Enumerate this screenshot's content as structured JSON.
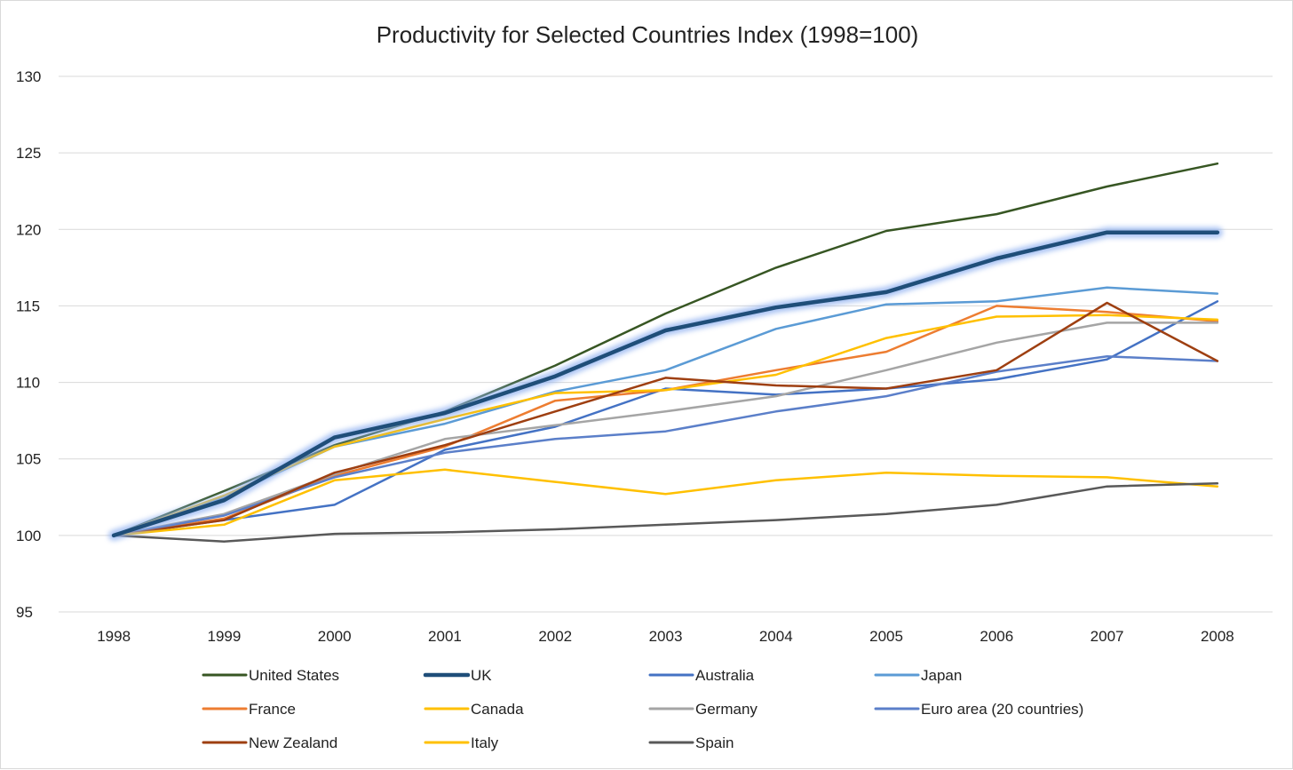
{
  "chart_data": {
    "type": "line",
    "title": "Productivity for Selected Countries Index (1998=100)",
    "xlabel": "",
    "ylabel": "",
    "ylim": [
      95,
      130
    ],
    "yticks": [
      95,
      100,
      105,
      110,
      115,
      120,
      125,
      130
    ],
    "grid": true,
    "legend_position": "bottom",
    "categories": [
      "1998",
      "1999",
      "2000",
      "2001",
      "2002",
      "2003",
      "2004",
      "2005",
      "2006",
      "2007",
      "2008"
    ],
    "series": [
      {
        "name": "United States",
        "color": "#375623",
        "highlight": false,
        "values": [
          100,
          102.9,
          105.9,
          108.1,
          111.1,
          114.5,
          117.5,
          119.9,
          121.0,
          122.8,
          124.3
        ]
      },
      {
        "name": "UK",
        "color": "#1F4E79",
        "highlight": true,
        "values": [
          100,
          102.3,
          106.4,
          108.0,
          110.4,
          113.4,
          114.9,
          115.9,
          118.1,
          119.8,
          119.8
        ]
      },
      {
        "name": "Australia",
        "color": "#4472C4",
        "highlight": false,
        "values": [
          100,
          101.0,
          102.0,
          105.6,
          107.1,
          109.6,
          109.2,
          109.6,
          110.2,
          111.5,
          115.3
        ]
      },
      {
        "name": "Japan",
        "color": "#5B9BD5",
        "highlight": false,
        "values": [
          100,
          102.5,
          105.8,
          107.3,
          109.4,
          110.8,
          113.5,
          115.1,
          115.3,
          116.2,
          115.8
        ]
      },
      {
        "name": "France",
        "color": "#ED7D31",
        "highlight": false,
        "values": [
          100,
          101.1,
          103.9,
          105.8,
          108.8,
          109.5,
          110.8,
          112.0,
          115.0,
          114.6,
          114.0
        ]
      },
      {
        "name": "Canada",
        "color": "#FFC000",
        "highlight": false,
        "values": [
          100,
          102.6,
          105.8,
          107.6,
          109.3,
          109.5,
          110.5,
          112.9,
          114.3,
          114.4,
          114.1
        ]
      },
      {
        "name": "Germany",
        "color": "#A5A5A5",
        "highlight": false,
        "values": [
          100,
          101.4,
          104.0,
          106.3,
          107.2,
          108.1,
          109.1,
          110.8,
          112.6,
          113.9,
          113.9
        ]
      },
      {
        "name": "Euro area (20 countries)",
        "color": "#5B7FC9",
        "highlight": false,
        "values": [
          100,
          101.3,
          103.8,
          105.4,
          106.3,
          106.8,
          108.1,
          109.1,
          110.7,
          111.7,
          111.4
        ]
      },
      {
        "name": "New Zealand",
        "color": "#9E3F11",
        "highlight": false,
        "values": [
          100,
          101.0,
          104.1,
          105.9,
          108.1,
          110.3,
          109.8,
          109.6,
          110.8,
          115.2,
          111.4
        ]
      },
      {
        "name": "Italy",
        "color": "#FFC000",
        "highlight": false,
        "values": [
          100,
          100.7,
          103.6,
          104.3,
          103.5,
          102.7,
          103.6,
          104.1,
          103.9,
          103.8,
          103.2
        ]
      },
      {
        "name": "Spain",
        "color": "#595959",
        "highlight": false,
        "values": [
          100,
          99.6,
          100.1,
          100.2,
          100.4,
          100.7,
          101.0,
          101.4,
          102.0,
          103.2,
          103.4
        ]
      }
    ]
  }
}
